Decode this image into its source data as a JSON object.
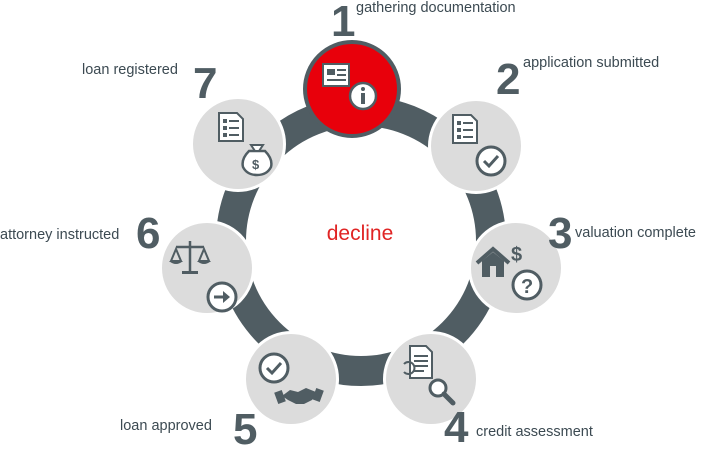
{
  "center": {
    "label": "decline"
  },
  "colors": {
    "ring": "#505d63",
    "active": "#e8000b",
    "node": "#dcdcdc",
    "label": "#3c4a52",
    "center_text": "#e02424"
  },
  "steps": [
    {
      "number": "1",
      "label": "gathering documentation",
      "icon": "document-info-icon",
      "active": true
    },
    {
      "number": "2",
      "label": "application submitted",
      "icon": "checklist-check-icon",
      "active": false
    },
    {
      "number": "3",
      "label": "valuation complete",
      "icon": "house-dollar-question-icon",
      "active": false
    },
    {
      "number": "4",
      "label": "credit assessment",
      "icon": "document-magnifier-icon",
      "active": false
    },
    {
      "number": "5",
      "label": "loan approved",
      "icon": "check-handshake-icon",
      "active": false
    },
    {
      "number": "6",
      "label": "attorney instructed",
      "icon": "scales-arrow-icon",
      "active": false
    },
    {
      "number": "7",
      "label": "loan registered",
      "icon": "checklist-moneybag-icon",
      "active": false
    }
  ]
}
